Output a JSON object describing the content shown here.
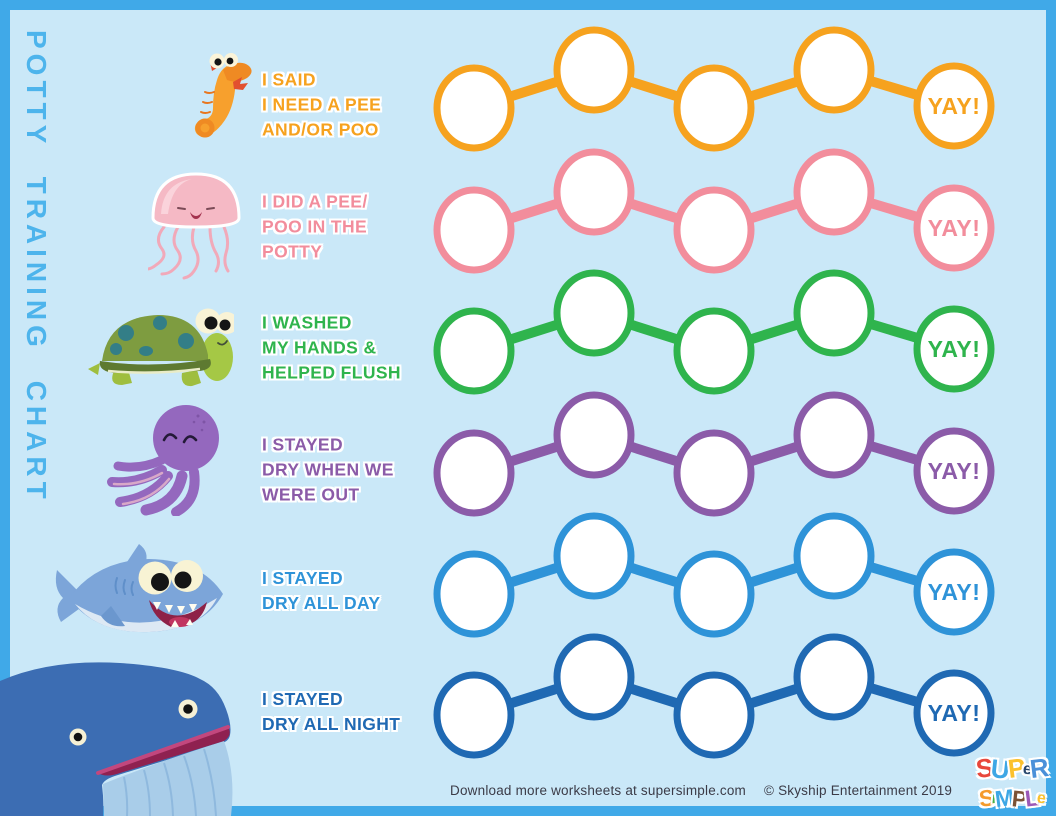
{
  "page": {
    "frame_color": "#40A9E8",
    "background_color": "#CAE8F8",
    "vertical_title": "POTTY TRAINING CHART",
    "vertical_title_color": "#4DB4EC"
  },
  "rows": [
    {
      "animal": "seahorse",
      "color": "#F6A21E",
      "label": "I SAID\nI NEED A PEE\nAND/OR POO",
      "yay_label": "YAY!",
      "empty_circles": 4
    },
    {
      "animal": "jellyfish",
      "color": "#F28D9C",
      "label": "I DID A PEE/\nPOO IN THE\nPOTTY",
      "yay_label": "YAY!",
      "empty_circles": 4
    },
    {
      "animal": "turtle",
      "color": "#2FB44D",
      "label": "I WASHED\nMY HANDS &\nHELPED FLUSH",
      "yay_label": "YAY!",
      "empty_circles": 4
    },
    {
      "animal": "octopus",
      "color": "#8B5BA8",
      "label": "I STAYED\nDRY WHEN WE\nWERE OUT",
      "yay_label": "YAY!",
      "empty_circles": 4
    },
    {
      "animal": "shark",
      "color": "#2E93D8",
      "label": "I STAYED\nDRY ALL DAY",
      "yay_label": "YAY!",
      "empty_circles": 4
    },
    {
      "animal": "whale",
      "color": "#1F69B3",
      "label": "I STAYED\nDRY ALL NIGHT",
      "yay_label": "YAY!",
      "empty_circles": 4
    }
  ],
  "footer": {
    "download_text": "Download more worksheets at supersimple.com",
    "copyright_text": "© Skyship Entertainment 2019"
  },
  "logo": {
    "line1": [
      {
        "ch": "S",
        "color": "#E8473B"
      },
      {
        "ch": "U",
        "color": "#3EA7E5"
      },
      {
        "ch": "P",
        "color": "#FBC12D"
      },
      {
        "ch": "e",
        "color": "#27456B"
      },
      {
        "ch": "R",
        "color": "#4A90D9"
      }
    ],
    "line2": [
      {
        "ch": "S",
        "color": "#F59B2C"
      },
      {
        "ch": "i",
        "color": "#43B049"
      },
      {
        "ch": "M",
        "color": "#3EA7E5"
      },
      {
        "ch": "P",
        "color": "#7B5236"
      },
      {
        "ch": "L",
        "color": "#9C59B8"
      },
      {
        "ch": "e",
        "color": "#FBC12D"
      }
    ]
  }
}
